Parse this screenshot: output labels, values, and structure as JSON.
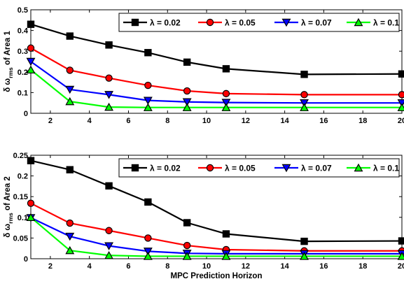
{
  "chart_data": [
    {
      "type": "line",
      "ylabel_main": "δ ω",
      "ylabel_sub": "rms",
      "ylabel_rest": " of Area 1",
      "xlabel": "",
      "x": [
        1,
        3,
        5,
        7,
        9,
        11,
        15,
        20
      ],
      "xlim": [
        1,
        20
      ],
      "ylim": [
        0,
        0.5
      ],
      "xticks": [
        2,
        4,
        6,
        8,
        10,
        12,
        14,
        16,
        18,
        20
      ],
      "yticks": [
        0,
        0.1,
        0.2,
        0.3,
        0.4,
        0.5
      ],
      "ytick_labels": [
        "0",
        "0.1",
        "0.2",
        "0.3",
        "0.4",
        "0.5"
      ],
      "grid": false,
      "legend_placement": "top-right",
      "series": [
        {
          "name": "λ = 0.02",
          "color": "#000000",
          "marker": "square",
          "values": [
            0.43,
            0.373,
            0.33,
            0.293,
            0.247,
            0.215,
            0.188,
            0.19
          ]
        },
        {
          "name": "λ = 0.05",
          "color": "#ff0000",
          "marker": "circle",
          "values": [
            0.315,
            0.208,
            0.17,
            0.135,
            0.108,
            0.095,
            0.09,
            0.09
          ]
        },
        {
          "name": "λ = 0.07",
          "color": "#0000ff",
          "marker": "triangle-down",
          "values": [
            0.25,
            0.115,
            0.09,
            0.062,
            0.055,
            0.052,
            0.05,
            0.05
          ]
        },
        {
          "name": "λ = 0.1",
          "color": "#00ff00",
          "marker": "triangle-up",
          "values": [
            0.21,
            0.057,
            0.03,
            0.028,
            0.028,
            0.028,
            0.028,
            0.028
          ]
        }
      ]
    },
    {
      "type": "line",
      "ylabel_main": "δ ω",
      "ylabel_sub": "rms",
      "ylabel_rest": " of Area 2",
      "xlabel": "MPC Prediction Horizon",
      "x": [
        1,
        3,
        5,
        7,
        9,
        11,
        15,
        20
      ],
      "xlim": [
        1,
        20
      ],
      "ylim": [
        0,
        0.25
      ],
      "xticks": [
        2,
        4,
        6,
        8,
        10,
        12,
        14,
        16,
        18,
        20
      ],
      "yticks": [
        0,
        0.05,
        0.1,
        0.15,
        0.2,
        0.25
      ],
      "ytick_labels": [
        "0",
        "0.05",
        "0.1",
        "0.15",
        "0.2",
        "0.25"
      ],
      "grid": false,
      "legend_placement": "top-right",
      "series": [
        {
          "name": "λ = 0.02",
          "color": "#000000",
          "marker": "square",
          "values": [
            0.237,
            0.215,
            0.176,
            0.137,
            0.087,
            0.06,
            0.042,
            0.043
          ]
        },
        {
          "name": "λ = 0.05",
          "color": "#ff0000",
          "marker": "circle",
          "values": [
            0.134,
            0.086,
            0.068,
            0.05,
            0.032,
            0.022,
            0.019,
            0.019
          ]
        },
        {
          "name": "λ = 0.07",
          "color": "#0000ff",
          "marker": "triangle-down",
          "values": [
            0.099,
            0.054,
            0.031,
            0.018,
            0.013,
            0.012,
            0.012,
            0.012
          ]
        },
        {
          "name": "λ = 0.1",
          "color": "#00ff00",
          "marker": "triangle-up",
          "values": [
            0.1,
            0.02,
            0.008,
            0.006,
            0.006,
            0.006,
            0.006,
            0.006
          ]
        }
      ]
    }
  ]
}
